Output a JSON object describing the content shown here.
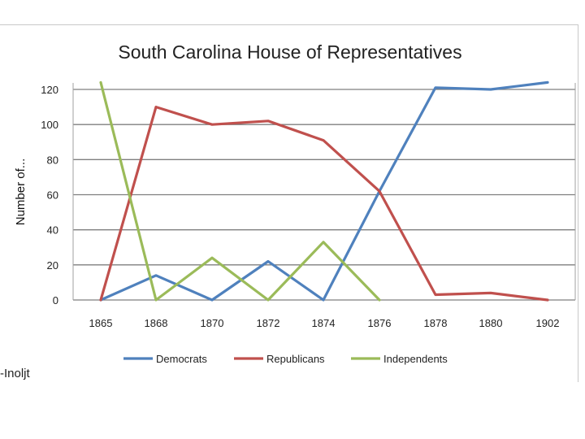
{
  "footer_text": "-Inoljt",
  "colors": {
    "democrats": "#4f81bd",
    "republicans": "#c0504d",
    "independents": "#9bbb59",
    "grid": "#7f7f7f"
  },
  "chart_data": {
    "type": "line",
    "title": "South Carolina House of Representatives",
    "xlabel": "",
    "ylabel": "Number of...",
    "categories": [
      "1865",
      "1868",
      "1870",
      "1872",
      "1874",
      "1876",
      "1878",
      "1880",
      "1902"
    ],
    "ylim": [
      0,
      120
    ],
    "yticks": [
      "0",
      "20",
      "40",
      "60",
      "80",
      "100",
      "120"
    ],
    "grid": true,
    "legend_position": "bottom",
    "series": [
      {
        "name": "Democrats",
        "color": "#4f81bd",
        "values": [
          0,
          14,
          0,
          22,
          0,
          62,
          121,
          120,
          124
        ]
      },
      {
        "name": "Republicans",
        "color": "#c0504d",
        "values": [
          0,
          110,
          100,
          102,
          91,
          62,
          3,
          4,
          0
        ]
      },
      {
        "name": "Independents",
        "color": "#9bbb59",
        "values": [
          124,
          0,
          24,
          0,
          33,
          0,
          null,
          null,
          null
        ]
      }
    ]
  }
}
